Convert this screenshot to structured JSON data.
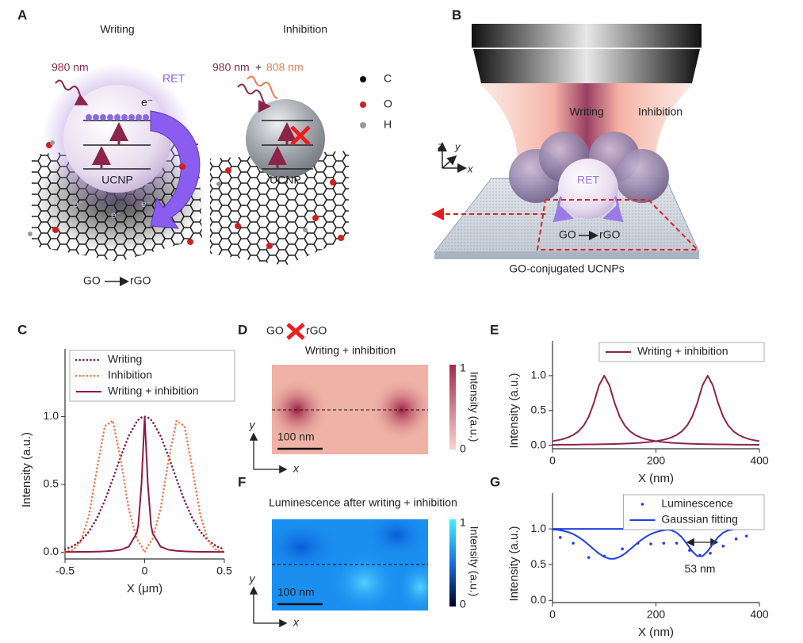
{
  "panels": {
    "A": {
      "label": "A",
      "writing": "Writing",
      "inhibition": "Inhibition",
      "wavelength_writing": "980 nm",
      "wavelength_inhibition_1": "980 nm",
      "plus": "+",
      "wavelength_inhibition_2": "808 nm",
      "electron": "e⁻",
      "ret": "RET",
      "ucnp": "UCNP",
      "legend": [
        "C",
        "O",
        "H"
      ],
      "reaction_go": "GO",
      "reaction_rgo": "rGO"
    },
    "B": {
      "label": "B",
      "writing": "Writing",
      "inhibition": "Inhibition",
      "axes": [
        "z",
        "y",
        "x"
      ],
      "ret": "RET",
      "go": "GO",
      "rgo": "rGO",
      "caption": "GO-conjugated UCNPs"
    },
    "D": {
      "label": "D",
      "title": "Writing + inhibition",
      "colorbar_label": "Intensity (a.u.)",
      "colorbar_max": "1",
      "colorbar_min": "0",
      "scale_bar": "100 nm",
      "axes": [
        "y",
        "x"
      ]
    },
    "F": {
      "label": "F",
      "title": "Luminescence after writing + inhibition",
      "colorbar_label": "Intensity (a.u.)",
      "colorbar_max": "1",
      "colorbar_min": "0",
      "scale_bar": "100 nm",
      "axes": [
        "y",
        "x"
      ]
    }
  },
  "chart_data": [
    {
      "panel": "C",
      "type": "line",
      "xlabel": "X (μm)",
      "ylabel": "Intensity (a.u.)",
      "legend": "upper left",
      "xlim": [
        -0.5,
        0.5
      ],
      "xticks": [
        -0.5,
        0,
        0.5
      ],
      "ylim": [
        -0.05,
        1.5
      ],
      "yticks": [
        {
          "value": 0,
          "label": "0.0"
        },
        0.5,
        {
          "value": 1,
          "label": "1.0"
        }
      ],
      "x": [
        -0.5,
        -0.45,
        -0.4,
        -0.35,
        -0.3,
        -0.25,
        -0.2,
        -0.15,
        -0.1,
        -0.05,
        -0.04,
        -0.02,
        0,
        0.02,
        0.04,
        0.05,
        0.1,
        0.15,
        0.2,
        0.25,
        0.3,
        0.35,
        0.4,
        0.45,
        0.5
      ],
      "series": [
        {
          "name": "Writing",
          "color": "#7b1f4a",
          "style": "dotted",
          "values": [
            0.021,
            0.044,
            0.085,
            0.151,
            0.249,
            0.381,
            0.539,
            0.707,
            0.857,
            0.962,
            0.976,
            0.994,
            1,
            0.994,
            0.976,
            0.962,
            0.857,
            0.707,
            0.539,
            0.381,
            0.249,
            0.151,
            0.085,
            0.044,
            0.021
          ]
        },
        {
          "name": "Inhibition",
          "color": "#f07b50",
          "style": "dotted",
          "values": [
            0.002,
            0.016,
            0.08,
            0.27,
            0.61,
            0.93,
            0.97,
            0.68,
            0.32,
            0.1,
            0.08,
            0.044,
            0,
            0.044,
            0.08,
            0.1,
            0.32,
            0.68,
            0.97,
            0.93,
            0.61,
            0.27,
            0.08,
            0.016,
            0.002
          ]
        },
        {
          "name": "Writing + inhibition",
          "color": "#8b1a45",
          "style": "solid",
          "values": [
            0.002,
            0.002,
            0.003,
            0.003,
            0.004,
            0.006,
            0.01,
            0.018,
            0.04,
            0.14,
            0.2,
            0.5,
            1,
            0.5,
            0.2,
            0.14,
            0.04,
            0.018,
            0.01,
            0.006,
            0.004,
            0.003,
            0.003,
            0.002,
            0.002
          ]
        }
      ]
    },
    {
      "panel": "E",
      "type": "line",
      "xlabel": "X (nm)",
      "ylabel": "Intensity (a.u.)",
      "legend": "upper right",
      "xlim": [
        0,
        400
      ],
      "xticks": [
        0,
        200,
        400
      ],
      "ylim": [
        -0.05,
        1.5
      ],
      "yticks": [
        {
          "value": 0,
          "label": "0.0"
        },
        0.5,
        {
          "value": 1,
          "label": "1.0"
        }
      ],
      "x": [
        0,
        10,
        20,
        30,
        40,
        50,
        60,
        70,
        80,
        90,
        100,
        110,
        120,
        130,
        140,
        150,
        160,
        170,
        180,
        190,
        200,
        210,
        220,
        230,
        240,
        250,
        260,
        270,
        280,
        290,
        300,
        310,
        320,
        330,
        340,
        350,
        360,
        370,
        380,
        390,
        400
      ],
      "series": [
        {
          "name": "Writing + inhibition",
          "color": "#8b2547",
          "style": "solid",
          "values": [
            0.059,
            0.072,
            0.089,
            0.113,
            0.148,
            0.2,
            0.281,
            0.41,
            0.61,
            0.862,
            1,
            0.862,
            0.61,
            0.41,
            0.281,
            0.2,
            0.148,
            0.113,
            0.089,
            0.072,
            0.059,
            0.049,
            0.042,
            0.036,
            0.031,
            0.027,
            0.024,
            0.021,
            0.019,
            0.017,
            0.015,
            0.014,
            0.013,
            0.012,
            0.011,
            0.01,
            0.009,
            0.008,
            0.008,
            0.007,
            0.007
          ]
        },
        {
          "color": "#8b2547",
          "style": "solid",
          "values": [
            0.007,
            0.007,
            0.008,
            0.008,
            0.009,
            0.01,
            0.011,
            0.012,
            0.013,
            0.014,
            0.015,
            0.017,
            0.019,
            0.021,
            0.024,
            0.027,
            0.031,
            0.036,
            0.042,
            0.049,
            0.059,
            0.072,
            0.089,
            0.113,
            0.148,
            0.2,
            0.281,
            0.41,
            0.61,
            0.862,
            1,
            0.862,
            0.61,
            0.41,
            0.281,
            0.2,
            0.148,
            0.113,
            0.089,
            0.072,
            0.059
          ]
        }
      ]
    },
    {
      "panel": "G",
      "type": "line",
      "xlabel": "X (nm)",
      "ylabel": "Intensity (a.u.)",
      "legend": "upper right",
      "annotation": "53 nm",
      "xlim": [
        0,
        400
      ],
      "xticks": [
        0,
        200,
        400
      ],
      "ylim": [
        -0.03,
        1.5
      ],
      "yticks": [
        {
          "value": 0,
          "label": "0.0"
        },
        0.5,
        {
          "value": 1,
          "label": "1.0"
        }
      ],
      "x": [
        0,
        10,
        20,
        30,
        40,
        50,
        60,
        70,
        80,
        90,
        100,
        110,
        120,
        130,
        140,
        150,
        160,
        170,
        180,
        190,
        200,
        210,
        220,
        230,
        240,
        250,
        260,
        270,
        280,
        290,
        300,
        310,
        320,
        330,
        340,
        350,
        360,
        370,
        380,
        390,
        400
      ],
      "series": [
        {
          "name": "Luminescence",
          "color": "#1f3fe0",
          "style": "markers",
          "x": [
            15,
            40,
            70,
            100,
            135,
            165,
            190,
            215,
            240,
            265,
            285,
            305,
            330,
            355,
            375
          ],
          "values": [
            0.88,
            0.8,
            0.6,
            0.62,
            0.72,
            0.8,
            0.79,
            0.8,
            0.8,
            0.7,
            0.63,
            0.66,
            0.76,
            0.86,
            0.9
          ]
        },
        {
          "name": "Gaussian fitting",
          "color": "#1f3fe0",
          "style": "solid",
          "values": [
            0.993,
            0.987,
            0.975,
            0.956,
            0.928,
            0.888,
            0.837,
            0.777,
            0.714,
            0.654,
            0.609,
            0.583,
            0.583,
            0.609,
            0.654,
            0.714,
            0.777,
            0.837,
            0.888,
            0.928,
            0.956,
            0.975,
            0.987,
            0.993,
            0.997,
            0.999,
            1,
            1,
            1,
            1,
            1,
            1,
            1,
            1,
            1,
            1,
            1,
            1,
            1,
            1,
            1
          ]
        },
        {
          "color": "#1f3fe0",
          "style": "solid",
          "values": [
            1,
            1,
            1,
            1,
            1,
            1,
            1,
            1,
            1,
            1,
            1,
            1,
            1,
            1,
            1,
            1,
            1,
            1,
            1,
            1,
            1,
            0.998,
            0.994,
            0.98,
            0.947,
            0.884,
            0.79,
            0.688,
            0.619,
            0.619,
            0.688,
            0.79,
            0.884,
            0.947,
            0.98,
            0.994,
            0.998,
            1,
            1,
            1,
            1
          ]
        }
      ]
    }
  ]
}
